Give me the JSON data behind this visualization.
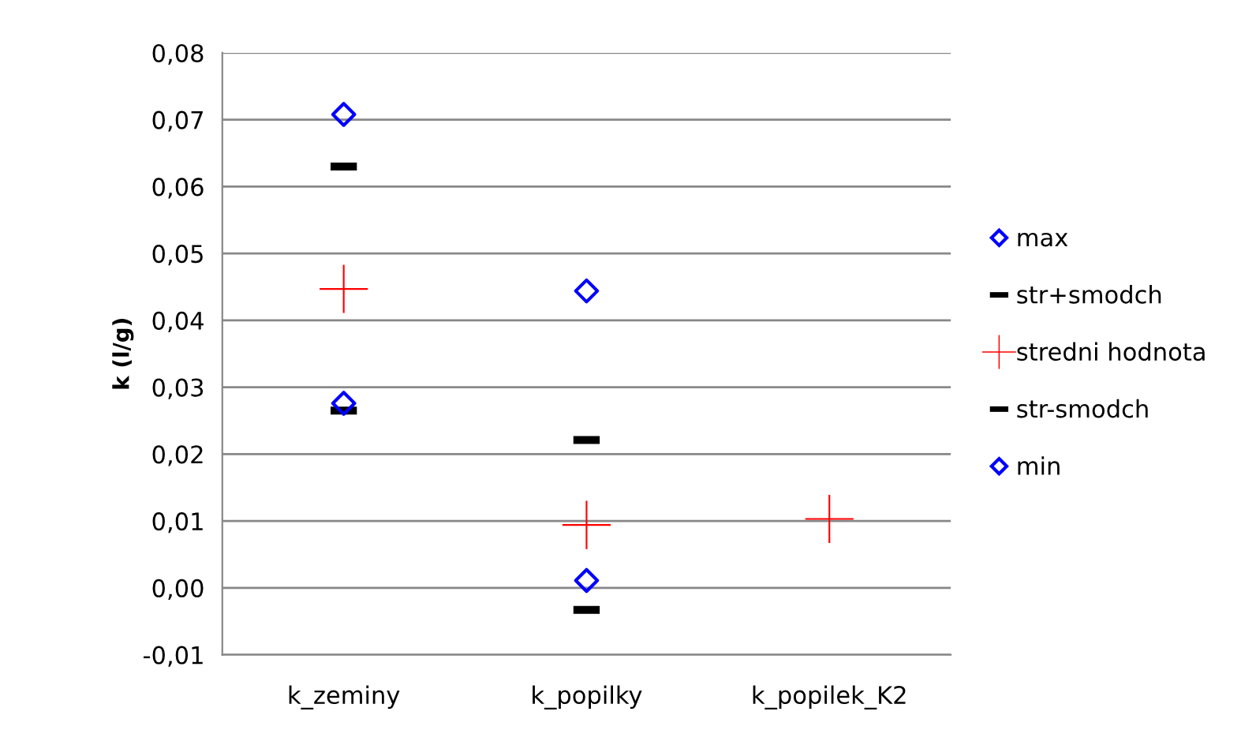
{
  "chart_data": {
    "type": "scatter",
    "ylabel": "k (l/g)",
    "categories": [
      "k_zeminy",
      "k_popilky",
      "k_popilek_K2"
    ],
    "series": [
      {
        "name": "max",
        "color": "#0000ff",
        "marker": "diamond",
        "values": [
          0.0708,
          0.0444,
          null
        ]
      },
      {
        "name": "str+smodch",
        "color": "#000000",
        "values": [
          0.063,
          0.0221,
          null
        ]
      },
      {
        "name": "stredni hodnota",
        "color": "#ff0000",
        "marker": "cross",
        "values": [
          0.0447,
          0.0094,
          0.0103
        ]
      },
      {
        "name": "str-smodch",
        "color": "#000000",
        "values": [
          0.0265,
          -0.0033,
          null
        ]
      },
      {
        "name": "min",
        "color": "#0000ff",
        "marker": "diamond",
        "values": [
          0.0276,
          0.0011,
          null
        ]
      }
    ],
    "ylim": [
      -0.01,
      0.08
    ],
    "yticks": [
      {
        "value": -0.01,
        "label": "-0,01"
      },
      {
        "value": 0,
        "label": "0,00"
      },
      {
        "value": 0.01,
        "label": "0,01"
      },
      {
        "value": 0.02,
        "label": "0,02"
      },
      {
        "value": 0.03,
        "label": "0,03"
      },
      {
        "value": 0.04,
        "label": "0,04"
      },
      {
        "value": 0.05,
        "label": "0,05"
      },
      {
        "value": 0.06,
        "label": "0,06"
      },
      {
        "value": 0.07,
        "label": "0,07"
      },
      {
        "value": 0.08,
        "label": "0,08"
      }
    ],
    "grid": "y",
    "legend": "right"
  }
}
